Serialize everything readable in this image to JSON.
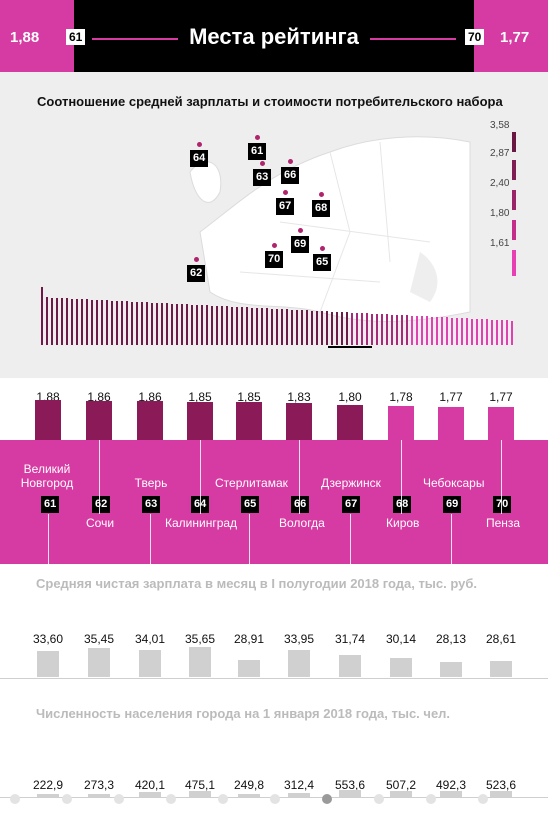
{
  "header": {
    "title": "Места рейтинга",
    "left_value": "1,88",
    "left_rank": "61",
    "right_value": "1,77",
    "right_rank": "70"
  },
  "map": {
    "title": "Соотношение средней зарплаты и стоимости потребительского набора",
    "markers": [
      "64",
      "61",
      "63",
      "66",
      "67",
      "68",
      "69",
      "70",
      "65",
      "62"
    ],
    "legend": [
      "3,58",
      "2,87",
      "2,40",
      "1,80",
      "1,61"
    ]
  },
  "ratings": [
    {
      "value": "1,88",
      "city": "Великий Новгород",
      "rank": "61",
      "salary": "33,60",
      "population": "222,9",
      "level": "high"
    },
    {
      "value": "1,86",
      "city": "Сочи",
      "rank": "62",
      "salary": "35,45",
      "population": "273,3",
      "level": "high"
    },
    {
      "value": "1,86",
      "city": "Тверь",
      "rank": "63",
      "salary": "34,01",
      "population": "420,1",
      "level": "high"
    },
    {
      "value": "1,85",
      "city": "Калининград",
      "rank": "64",
      "salary": "35,65",
      "population": "475,1",
      "level": "high"
    },
    {
      "value": "1,85",
      "city": "Стерлитамак",
      "rank": "65",
      "salary": "28,91",
      "population": "249,8",
      "level": "high"
    },
    {
      "value": "1,83",
      "city": "Вологда",
      "rank": "66",
      "salary": "33,95",
      "population": "312,4",
      "level": "high"
    },
    {
      "value": "1,80",
      "city": "Дзержинск",
      "rank": "67",
      "salary": "31,74",
      "population": "553,6",
      "level": "high"
    },
    {
      "value": "1,78",
      "city": "Киров",
      "rank": "68",
      "salary": "30,14",
      "population": "507,2",
      "level": "low"
    },
    {
      "value": "1,77",
      "city": "Чебоксары",
      "rank": "69",
      "salary": "28,13",
      "population": "492,3",
      "level": "low"
    },
    {
      "value": "1,77",
      "city": "Пенза",
      "rank": "70",
      "salary": "28,61",
      "population": "523,6",
      "level": "low"
    }
  ],
  "salary_section": {
    "title": "Средняя чистая зарплата в месяц в I полугодии 2018 года, тыс. руб."
  },
  "population_section": {
    "title": "Численность населения города на 1 января 2018 года, тыс. чел."
  },
  "colors": {
    "magenta": "#d63aa3",
    "dark_plum": "#8a1a58",
    "black": "#000000",
    "grey_bar": "#d0d0d0"
  },
  "pagination": {
    "total": 10,
    "active": 7
  }
}
